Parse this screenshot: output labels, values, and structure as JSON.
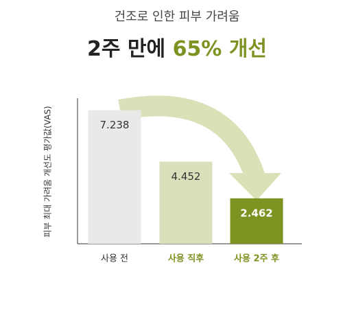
{
  "chart_data": {
    "type": "bar",
    "title": "건조로 인한 피부 가려움",
    "subtitle": [
      "2주 만에",
      "65% 개선"
    ],
    "subtitle_colors": [
      "#222222",
      "#7d9321"
    ],
    "y_label": "피부 최대 가려움 개선도 평가값(VAS)",
    "categories": [
      "사용 전",
      "사용 직후",
      "사용 2주 후"
    ],
    "values": [
      7.238,
      4.452,
      2.462
    ],
    "colors": [
      "#e9e9e9",
      "#d9e0bb",
      "#7d9321"
    ],
    "value_label_colors": [
      "#333333",
      "#333333",
      "#ffffff"
    ],
    "category_label_colors": [
      "#333333",
      "#7d9321",
      "#7d9321"
    ],
    "ylim": [
      0,
      8
    ]
  }
}
